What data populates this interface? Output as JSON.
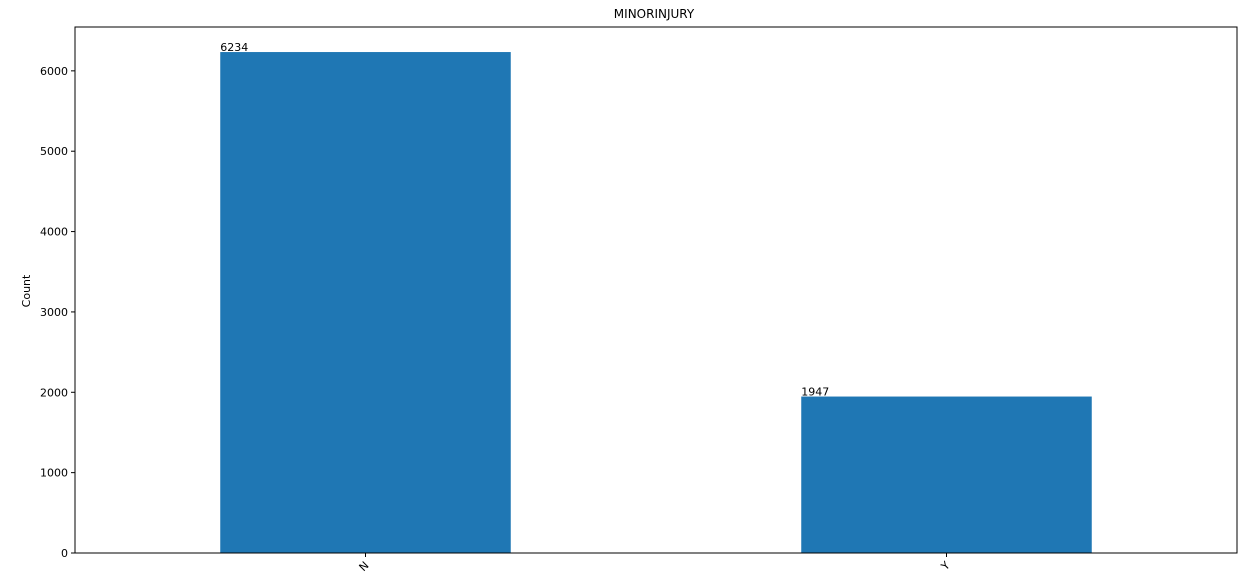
{
  "chart_data": {
    "type": "bar",
    "title": "MINORINJURY",
    "xlabel": "",
    "ylabel": "Count",
    "categories": [
      "N",
      "Y"
    ],
    "values": [
      6234,
      1947
    ],
    "value_labels": [
      "6234",
      "1947"
    ],
    "ylim": [
      0,
      6545.7
    ],
    "yticks": [
      0,
      1000,
      2000,
      3000,
      4000,
      5000,
      6000
    ],
    "ytick_labels": [
      "0",
      "1000",
      "2000",
      "3000",
      "4000",
      "5000",
      "6000"
    ],
    "bar_color": "#1f77b4",
    "grid": false,
    "legend": false
  }
}
